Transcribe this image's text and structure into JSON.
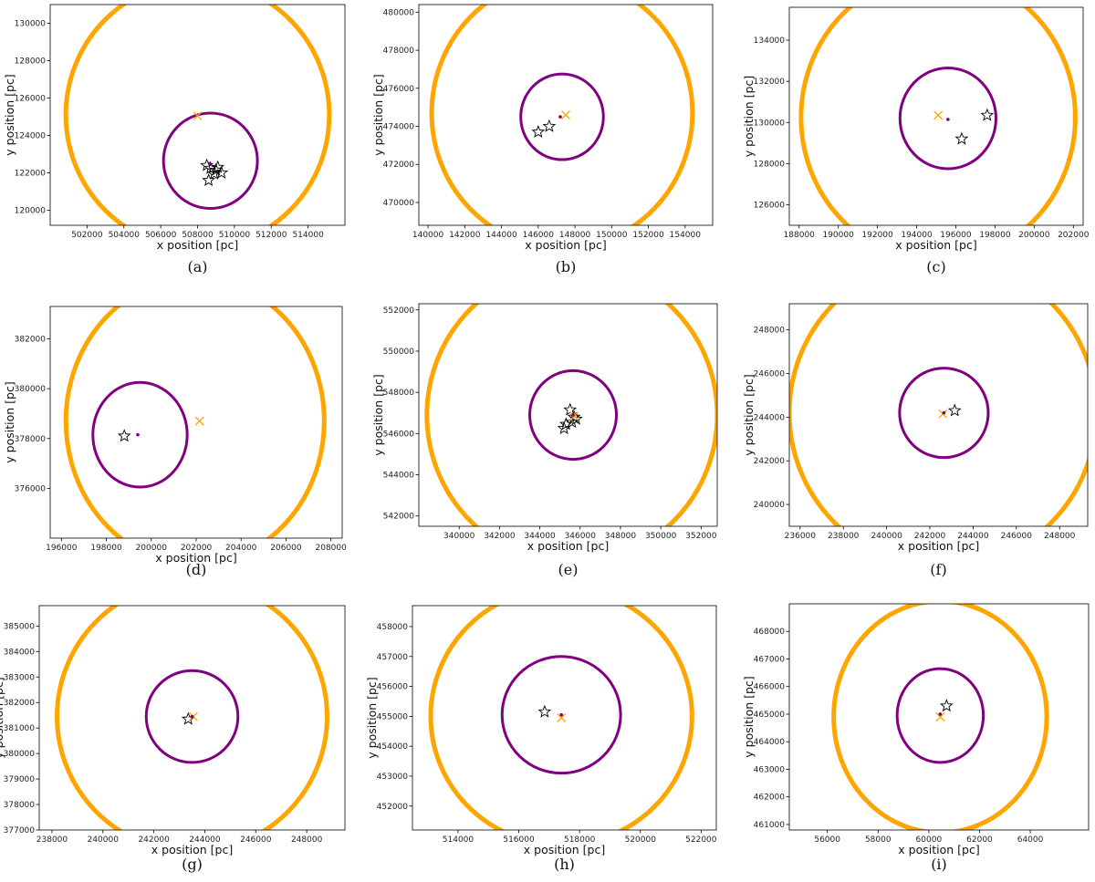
{
  "figure": {
    "colors": {
      "halo": "#FFA500",
      "sat": "#800080",
      "star": "#000000",
      "cross": "#FFA500"
    },
    "icons": {
      "star": "star-marker-icon",
      "cross": "x-marker-icon"
    }
  },
  "chart_data": [
    {
      "type": "scatter",
      "label": "(a)",
      "xlabel": "x position [pc]",
      "ylabel": "y position [pc]",
      "xlim": [
        500000,
        516000
      ],
      "ylim": [
        119200,
        131000
      ],
      "xticks": [
        502000,
        504000,
        506000,
        508000,
        510000,
        512000,
        514000
      ],
      "xtick_labels": [
        "502000",
        "504000",
        "506000",
        "508000",
        "510000",
        "512000",
        "514000"
      ],
      "yticks": [
        120000,
        122000,
        124000,
        126000,
        128000,
        130000
      ],
      "ytick_labels": [
        "120000",
        "122000",
        "124000",
        "126000",
        "128000",
        "130000"
      ],
      "halo_circle": {
        "center": [
          508000,
          125100
        ],
        "radius": 7150
      },
      "sat_circle": {
        "center": [
          508700,
          122650
        ],
        "radius": 2550
      },
      "center_dot": [
        508650,
        122500
      ],
      "cross": [
        508000,
        125050
      ],
      "stars": [
        [
          508700,
          122250
        ],
        [
          509100,
          122300
        ],
        [
          509300,
          122000
        ],
        [
          508900,
          121950
        ],
        [
          508600,
          121600
        ],
        [
          509000,
          122150
        ],
        [
          508500,
          122400
        ]
      ]
    },
    {
      "type": "scatter",
      "label": "(b)",
      "xlabel": "x position [pc]",
      "ylabel": "y position [pc]",
      "xlim": [
        139500,
        155500
      ],
      "ylim": [
        468800,
        480400
      ],
      "xticks": [
        140000,
        142000,
        144000,
        146000,
        148000,
        150000,
        152000,
        154000
      ],
      "xtick_labels": [
        "140000",
        "142000",
        "144000",
        "146000",
        "148000",
        "150000",
        "152000",
        "154000"
      ],
      "yticks": [
        470000,
        472000,
        474000,
        476000,
        478000,
        480000
      ],
      "ytick_labels": [
        "470000",
        "472000",
        "474000",
        "476000",
        "478000",
        "480000"
      ],
      "halo_circle": {
        "center": [
          147300,
          474700
        ],
        "radius": 7100
      },
      "sat_circle": {
        "center": [
          147300,
          474500
        ],
        "radius": 2250
      },
      "center_dot": [
        147200,
        474500
      ],
      "cross": [
        147500,
        474600
      ],
      "stars": [
        [
          146000,
          473700
        ],
        [
          146600,
          474000
        ]
      ]
    },
    {
      "type": "scatter",
      "label": "(c)",
      "xlabel": "x position [pc]",
      "ylabel": "y position [pc]",
      "xlim": [
        187500,
        202500
      ],
      "ylim": [
        125000,
        135600
      ],
      "xticks": [
        188000,
        190000,
        192000,
        194000,
        196000,
        198000,
        200000,
        202000
      ],
      "xtick_labels": [
        "188000",
        "190000",
        "192000",
        "194000",
        "196000",
        "198000",
        "200000",
        "202000"
      ],
      "yticks": [
        126000,
        128000,
        130000,
        132000,
        134000
      ],
      "ytick_labels": [
        "126000",
        "128000",
        "130000",
        "132000",
        "134000"
      ],
      "halo_circle": {
        "center": [
          195100,
          130250
        ],
        "radius": 7000
      },
      "sat_circle": {
        "center": [
          195600,
          130200
        ],
        "radius": 2450
      },
      "center_dot": [
        195600,
        130150
      ],
      "cross": [
        195100,
        130350
      ],
      "stars": [
        [
          197600,
          130350
        ],
        [
          196300,
          129200
        ]
      ]
    },
    {
      "type": "scatter",
      "label": "(d)",
      "xlabel": "x position [pc]",
      "ylabel": "y position [pc]",
      "xlim": [
        195500,
        208500
      ],
      "ylim": [
        374000,
        383300
      ],
      "xticks": [
        196000,
        198000,
        200000,
        202000,
        204000,
        206000,
        208000
      ],
      "xtick_labels": [
        "196000",
        "198000",
        "200000",
        "202000",
        "204000",
        "206000",
        "208000"
      ],
      "yticks": [
        376000,
        378000,
        380000,
        382000
      ],
      "ytick_labels": [
        "376000",
        "378000",
        "380000",
        "382000"
      ],
      "halo_circle": {
        "center": [
          201950,
          378700
        ],
        "radius": 5750
      },
      "sat_circle": {
        "center": [
          199500,
          378150
        ],
        "radius": 2100
      },
      "center_dot": [
        199400,
        378150
      ],
      "cross": [
        202150,
        378700
      ],
      "stars": [
        [
          198800,
          378100
        ]
      ]
    },
    {
      "type": "scatter",
      "label": "(e)",
      "xlabel": "x position [pc]",
      "ylabel": "y position [pc]",
      "xlim": [
        338000,
        352800
      ],
      "ylim": [
        541500,
        552300
      ],
      "xticks": [
        340000,
        342000,
        344000,
        346000,
        348000,
        350000,
        352000
      ],
      "xtick_labels": [
        "340000",
        "342000",
        "344000",
        "346000",
        "348000",
        "350000",
        "352000"
      ],
      "yticks": [
        542000,
        544000,
        546000,
        548000,
        550000,
        552000
      ],
      "ytick_labels": [
        "542000",
        "544000",
        "546000",
        "548000",
        "550000",
        "552000"
      ],
      "halo_circle": {
        "center": [
          345600,
          546900
        ],
        "radius": 7200
      },
      "sat_circle": {
        "center": [
          345650,
          546900
        ],
        "radius": 2150
      },
      "center_dot": [
        345650,
        546900
      ],
      "cross": [
        345700,
        546850
      ],
      "stars": [
        [
          345500,
          547150
        ],
        [
          345700,
          546800
        ],
        [
          345600,
          546550
        ],
        [
          345300,
          546450
        ],
        [
          345200,
          546250
        ],
        [
          345800,
          546700
        ]
      ]
    },
    {
      "type": "scatter",
      "label": "(f)",
      "xlabel": "x position [pc]",
      "ylabel": "y position [pc]",
      "xlim": [
        235500,
        249300
      ],
      "ylim": [
        239000,
        249200
      ],
      "xticks": [
        236000,
        238000,
        240000,
        242000,
        244000,
        246000,
        248000
      ],
      "xtick_labels": [
        "236000",
        "238000",
        "240000",
        "242000",
        "244000",
        "246000",
        "248000"
      ],
      "yticks": [
        240000,
        242000,
        244000,
        246000,
        248000
      ],
      "ytick_labels": [
        "240000",
        "242000",
        "244000",
        "246000",
        "248000"
      ],
      "halo_circle": {
        "center": [
          242600,
          244200
        ],
        "radius": 7100
      },
      "sat_circle": {
        "center": [
          242650,
          244200
        ],
        "radius": 2050
      },
      "center_dot": [
        242650,
        244200
      ],
      "cross": [
        242600,
        244150
      ],
      "stars": [
        [
          243150,
          244300
        ]
      ]
    },
    {
      "type": "scatter",
      "label": "(g)",
      "xlabel": "x position [pc]",
      "ylabel": "y position [pc]",
      "xlim": [
        237500,
        249500
      ],
      "ylim": [
        377000,
        385800
      ],
      "xticks": [
        238000,
        240000,
        242000,
        244000,
        246000,
        248000
      ],
      "xtick_labels": [
        "238000",
        "240000",
        "242000",
        "244000",
        "246000",
        "248000"
      ],
      "yticks": [
        377000,
        378000,
        379000,
        380000,
        381000,
        382000,
        383000,
        384000,
        385000
      ],
      "ytick_labels": [
        "377000",
        "378000",
        "379000",
        "380000",
        "381000",
        "382000",
        "383000",
        "384000",
        "385000"
      ],
      "halo_circle": {
        "center": [
          243500,
          381450
        ],
        "radius": 5300
      },
      "sat_circle": {
        "center": [
          243500,
          381450
        ],
        "radius": 1800
      },
      "center_dot": [
        243500,
        381450
      ],
      "cross": [
        243550,
        381450
      ],
      "stars": [
        [
          243350,
          381350
        ]
      ]
    },
    {
      "type": "scatter",
      "label": "(h)",
      "xlabel": "x position [pc]",
      "ylabel": "y position [pc]",
      "xlim": [
        512500,
        522500
      ],
      "ylim": [
        451200,
        458700
      ],
      "xticks": [
        514000,
        516000,
        518000,
        520000,
        522000
      ],
      "xtick_labels": [
        "514000",
        "516000",
        "518000",
        "520000",
        "522000"
      ],
      "yticks": [
        452000,
        453000,
        454000,
        455000,
        456000,
        457000,
        458000
      ],
      "ytick_labels": [
        "452000",
        "453000",
        "454000",
        "455000",
        "456000",
        "457000",
        "458000"
      ],
      "halo_circle": {
        "center": [
          517400,
          455000
        ],
        "radius": 4300
      },
      "sat_circle": {
        "center": [
          517400,
          455050
        ],
        "radius": 1950
      },
      "center_dot": [
        517400,
        455050
      ],
      "cross": [
        517400,
        454950
      ],
      "stars": [
        [
          516850,
          455150
        ]
      ]
    },
    {
      "type": "scatter",
      "label": "(i)",
      "xlabel": "x position [pc]",
      "ylabel": "y position [pc]",
      "xlim": [
        54500,
        66300
      ],
      "ylim": [
        460800,
        469000
      ],
      "xticks": [
        56000,
        58000,
        60000,
        62000,
        64000
      ],
      "xtick_labels": [
        "56000",
        "58000",
        "60000",
        "62000",
        "64000"
      ],
      "yticks": [
        461000,
        462000,
        463000,
        464000,
        465000,
        466000,
        467000,
        468000
      ],
      "ytick_labels": [
        "461000",
        "462000",
        "463000",
        "464000",
        "465000",
        "466000",
        "467000",
        "468000"
      ],
      "halo_circle": {
        "center": [
          60450,
          464900
        ],
        "radius": 4200
      },
      "sat_circle": {
        "center": [
          60450,
          464950
        ],
        "radius": 1700
      },
      "center_dot": [
        60450,
        465000
      ],
      "cross": [
        60450,
        464900
      ],
      "stars": [
        [
          60700,
          465300
        ]
      ]
    }
  ]
}
